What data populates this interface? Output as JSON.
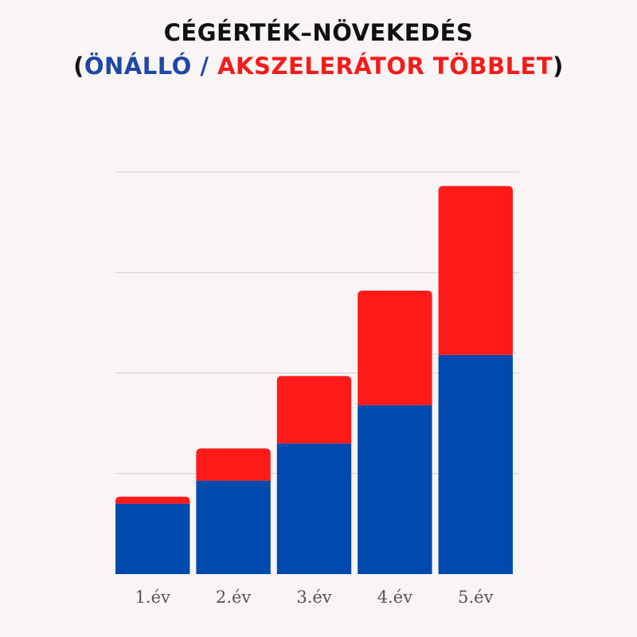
{
  "title": {
    "line1": "CÉGÉRTÉK–NÖVEKEDÉS",
    "open_paren": "(",
    "series1_label": "ÖNÁLLÓ",
    "separator": " / ",
    "series2_label": "AKSZELERÁTOR TÖBBLET",
    "close_paren": ")"
  },
  "colors": {
    "background": "#f8f5f4",
    "title": "#111111",
    "series1": "#004aad",
    "series2": "#ff1a1a",
    "gridline": "#cfcfcf"
  },
  "chart_data": {
    "type": "bar",
    "stacked": true,
    "categories": [
      "1.év",
      "2.év",
      "3.év",
      "4.év",
      "5.év"
    ],
    "series": [
      {
        "name": "ÖNÁLLÓ",
        "color": "#004aad",
        "values": [
          0.7,
          0.93,
          1.3,
          1.68,
          2.18
        ]
      },
      {
        "name": "AKSZELERÁTOR TÖBBLET",
        "color": "#ff1a1a",
        "values": [
          0.07,
          0.32,
          0.67,
          1.14,
          1.68
        ]
      }
    ],
    "ylim": [
      0,
      4
    ],
    "grid": true,
    "y_tick_labels_visible": false,
    "legend": "title"
  }
}
